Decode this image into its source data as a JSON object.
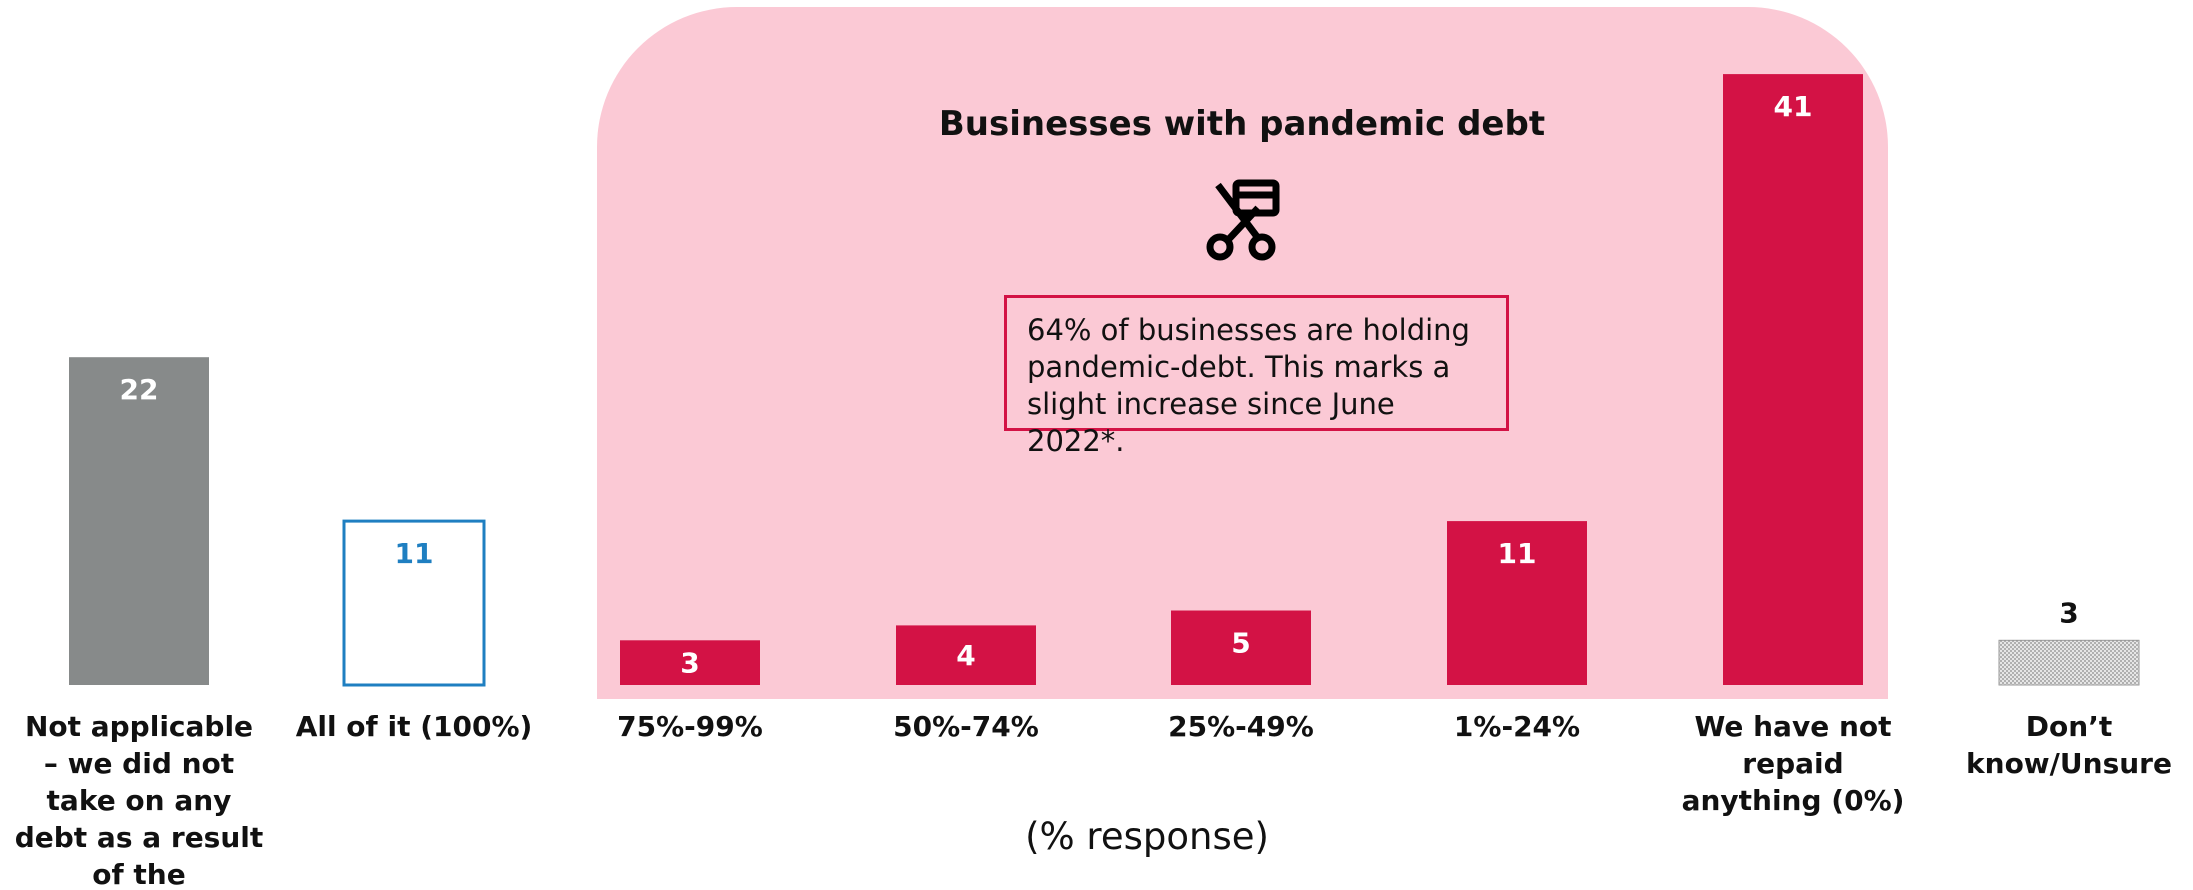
{
  "chart_data": {
    "type": "bar",
    "title": "Businesses with pandemic debt",
    "annotation": "64% of businesses are holding pandemic-debt. This marks a slight increase since June 2022*.",
    "x_label": "(% response)",
    "categories": [
      "Not applicable – we did not take on any debt as a result of the pandemic",
      "All of it (100%)",
      "75%-99%",
      "50%-74%",
      "25%-49%",
      "1%-24%",
      "We have not repaid anything (0%)",
      "Don’t know/Unsure"
    ],
    "values": [
      22,
      11,
      3,
      4,
      5,
      11,
      41,
      3
    ],
    "colors": [
      "#878a8a",
      "#1f7fc1",
      "#d31245",
      "#d31245",
      "#d31245",
      "#d31245",
      "#d31245",
      "#9a9a9a"
    ],
    "bar_styles": [
      "fill",
      "outline",
      "fill",
      "fill",
      "fill",
      "fill",
      "fill",
      "pattern"
    ]
  }
}
